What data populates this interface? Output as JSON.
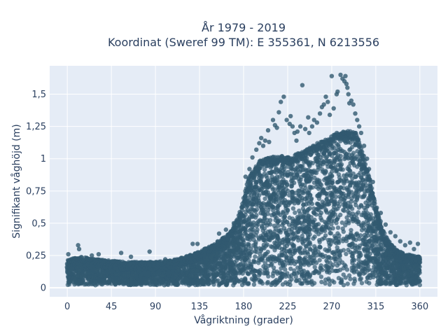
{
  "chart_data": {
    "type": "scatter",
    "title_lines": [
      "År 1979 - 2019",
      "Koordinat (Sweref 99 TM): E 355361, N 6213556"
    ],
    "xlabel": "Vågriktning (grader)",
    "ylabel": "Signifikant våghöjd (m)",
    "xlim": [
      -18,
      378
    ],
    "ylim": [
      -0.07,
      1.72
    ],
    "x_ticks": [
      0,
      45,
      90,
      135,
      180,
      225,
      270,
      315,
      360
    ],
    "x_tick_labels": [
      "0",
      "45",
      "90",
      "135",
      "180",
      "225",
      "270",
      "315",
      "360"
    ],
    "y_ticks": [
      0,
      0.25,
      0.5,
      0.75,
      1,
      1.25,
      1.5
    ],
    "y_tick_labels": [
      "0",
      "0,25",
      "0,5",
      "0,75",
      "1",
      "1,25",
      "1,5"
    ],
    "marker_color": "#325a70",
    "plot_bg": "#e5ecf6",
    "grid": true,
    "legend": false,
    "envelope": [
      [
        0,
        0.22
      ],
      [
        15,
        0.24
      ],
      [
        30,
        0.22
      ],
      [
        45,
        0.21
      ],
      [
        60,
        0.2
      ],
      [
        75,
        0.2
      ],
      [
        90,
        0.2
      ],
      [
        105,
        0.21
      ],
      [
        120,
        0.24
      ],
      [
        135,
        0.28
      ],
      [
        150,
        0.34
      ],
      [
        165,
        0.42
      ],
      [
        175,
        0.55
      ],
      [
        185,
        0.85
      ],
      [
        195,
        0.98
      ],
      [
        210,
        1.02
      ],
      [
        225,
        1.02
      ],
      [
        240,
        1.05
      ],
      [
        255,
        1.12
      ],
      [
        265,
        1.15
      ],
      [
        275,
        1.2
      ],
      [
        285,
        1.22
      ],
      [
        295,
        1.2
      ],
      [
        300,
        1.1
      ],
      [
        305,
        0.95
      ],
      [
        312,
        0.75
      ],
      [
        318,
        0.55
      ],
      [
        325,
        0.4
      ],
      [
        335,
        0.3
      ],
      [
        345,
        0.26
      ],
      [
        360,
        0.24
      ]
    ],
    "outliers": [
      [
        1,
        0.26
      ],
      [
        11,
        0.33
      ],
      [
        12,
        0.3
      ],
      [
        32,
        0.26
      ],
      [
        25,
        0.25
      ],
      [
        55,
        0.27
      ],
      [
        65,
        0.24
      ],
      [
        84,
        0.28
      ],
      [
        100,
        0.22
      ],
      [
        128,
        0.34
      ],
      [
        133,
        0.34
      ],
      [
        140,
        0.3
      ],
      [
        155,
        0.42
      ],
      [
        162,
        0.45
      ],
      [
        170,
        0.5
      ],
      [
        182,
        0.86
      ],
      [
        186,
        0.92
      ],
      [
        189,
        1.01
      ],
      [
        193,
        1.07
      ],
      [
        196,
        1.12
      ],
      [
        198,
        1.16
      ],
      [
        200,
        1.1
      ],
      [
        202,
        1.14
      ],
      [
        205,
        1.22
      ],
      [
        206,
        1.13
      ],
      [
        210,
        1.3
      ],
      [
        212,
        1.26
      ],
      [
        214,
        1.24
      ],
      [
        216,
        1.36
      ],
      [
        218,
        1.44
      ],
      [
        221,
        1.48
      ],
      [
        224,
        1.3
      ],
      [
        227,
        1.27
      ],
      [
        228,
        1.33
      ],
      [
        230,
        1.25
      ],
      [
        232,
        1.2
      ],
      [
        234,
        1.14
      ],
      [
        235,
        1.21
      ],
      [
        238,
        1.25
      ],
      [
        240,
        1.57
      ],
      [
        243,
        1.23
      ],
      [
        246,
        1.32
      ],
      [
        247,
        1.2
      ],
      [
        250,
        1.25
      ],
      [
        252,
        1.3
      ],
      [
        255,
        1.28
      ],
      [
        258,
        1.35
      ],
      [
        260,
        1.4
      ],
      [
        262,
        1.42
      ],
      [
        264,
        1.48
      ],
      [
        266,
        1.44
      ],
      [
        268,
        1.34
      ],
      [
        270,
        1.64
      ],
      [
        272,
        1.39
      ],
      [
        275,
        1.5
      ],
      [
        276,
        1.52
      ],
      [
        279,
        1.65
      ],
      [
        281,
        1.62
      ],
      [
        283,
        1.6
      ],
      [
        284,
        1.64
      ],
      [
        285,
        1.58
      ],
      [
        286,
        1.55
      ],
      [
        287,
        1.5
      ],
      [
        288,
        1.43
      ],
      [
        290,
        1.45
      ],
      [
        292,
        1.42
      ],
      [
        294,
        1.35
      ],
      [
        296,
        1.3
      ],
      [
        298,
        1.25
      ],
      [
        300,
        1.2
      ],
      [
        303,
        1.1
      ],
      [
        306,
        1.0
      ],
      [
        308,
        0.92
      ],
      [
        312,
        0.82
      ],
      [
        316,
        0.62
      ],
      [
        320,
        0.58
      ],
      [
        325,
        0.49
      ],
      [
        330,
        0.43
      ],
      [
        335,
        0.4
      ],
      [
        340,
        0.36
      ],
      [
        345,
        0.33
      ],
      [
        350,
        0.35
      ],
      [
        354,
        0.3
      ],
      [
        358,
        0.34
      ]
    ]
  }
}
